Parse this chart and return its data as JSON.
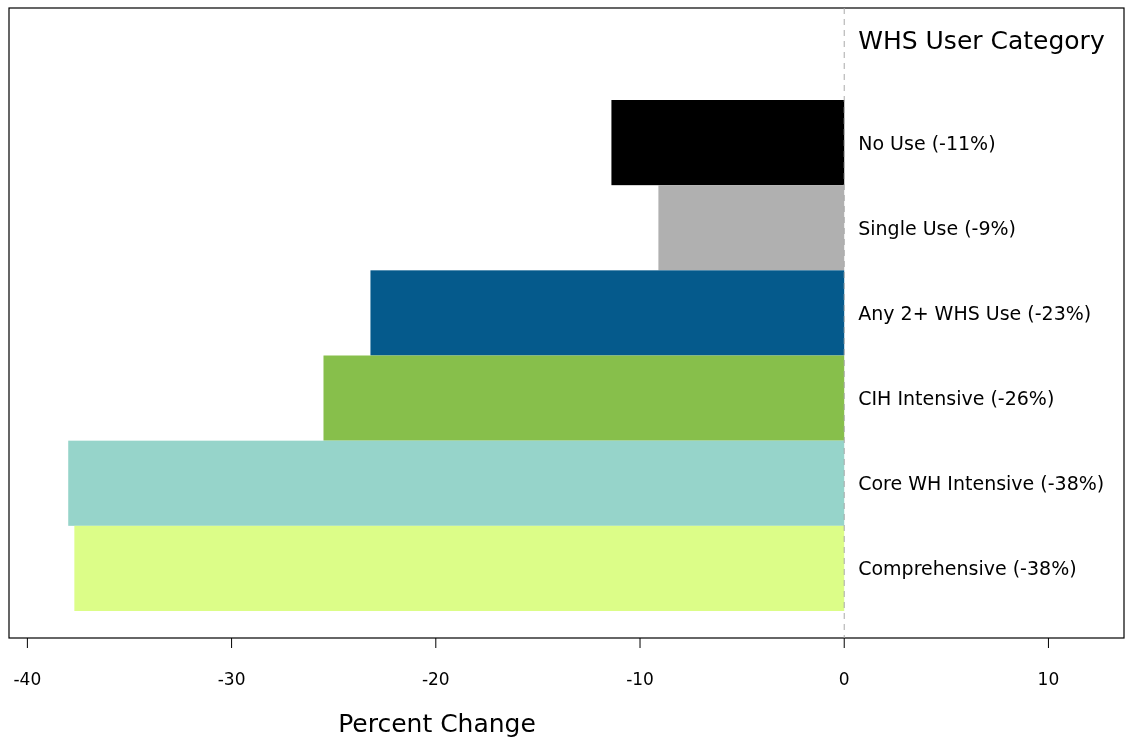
{
  "chart_data": {
    "type": "bar",
    "orientation": "horizontal",
    "legend_title": "WHS User Category",
    "xlabel": "Percent Change",
    "categories": [
      "No Use (-11%)",
      "Single Use (-9%)",
      "Any 2+ WHS Use (-23%)",
      "CIH Intensive (-26%)",
      "Core WH Intensive (-38%)",
      "Comprehensive (-38%)"
    ],
    "values": [
      -11.4,
      -9.1,
      -23.2,
      -25.5,
      -38,
      -37.7
    ],
    "colors": [
      "#000000",
      "#b0b0b0",
      "#055a8c",
      "#87bf4b",
      "#96d4ca",
      "#dcfd88"
    ],
    "xlim": [
      -40.9,
      13.7
    ],
    "xticks": [
      -40,
      -30,
      -20,
      -10,
      0,
      10
    ],
    "ref_lines": [
      {
        "axis": "x",
        "value": 0,
        "color": "#aaaaaa",
        "line_style": "dashed"
      }
    ],
    "grid": false
  }
}
